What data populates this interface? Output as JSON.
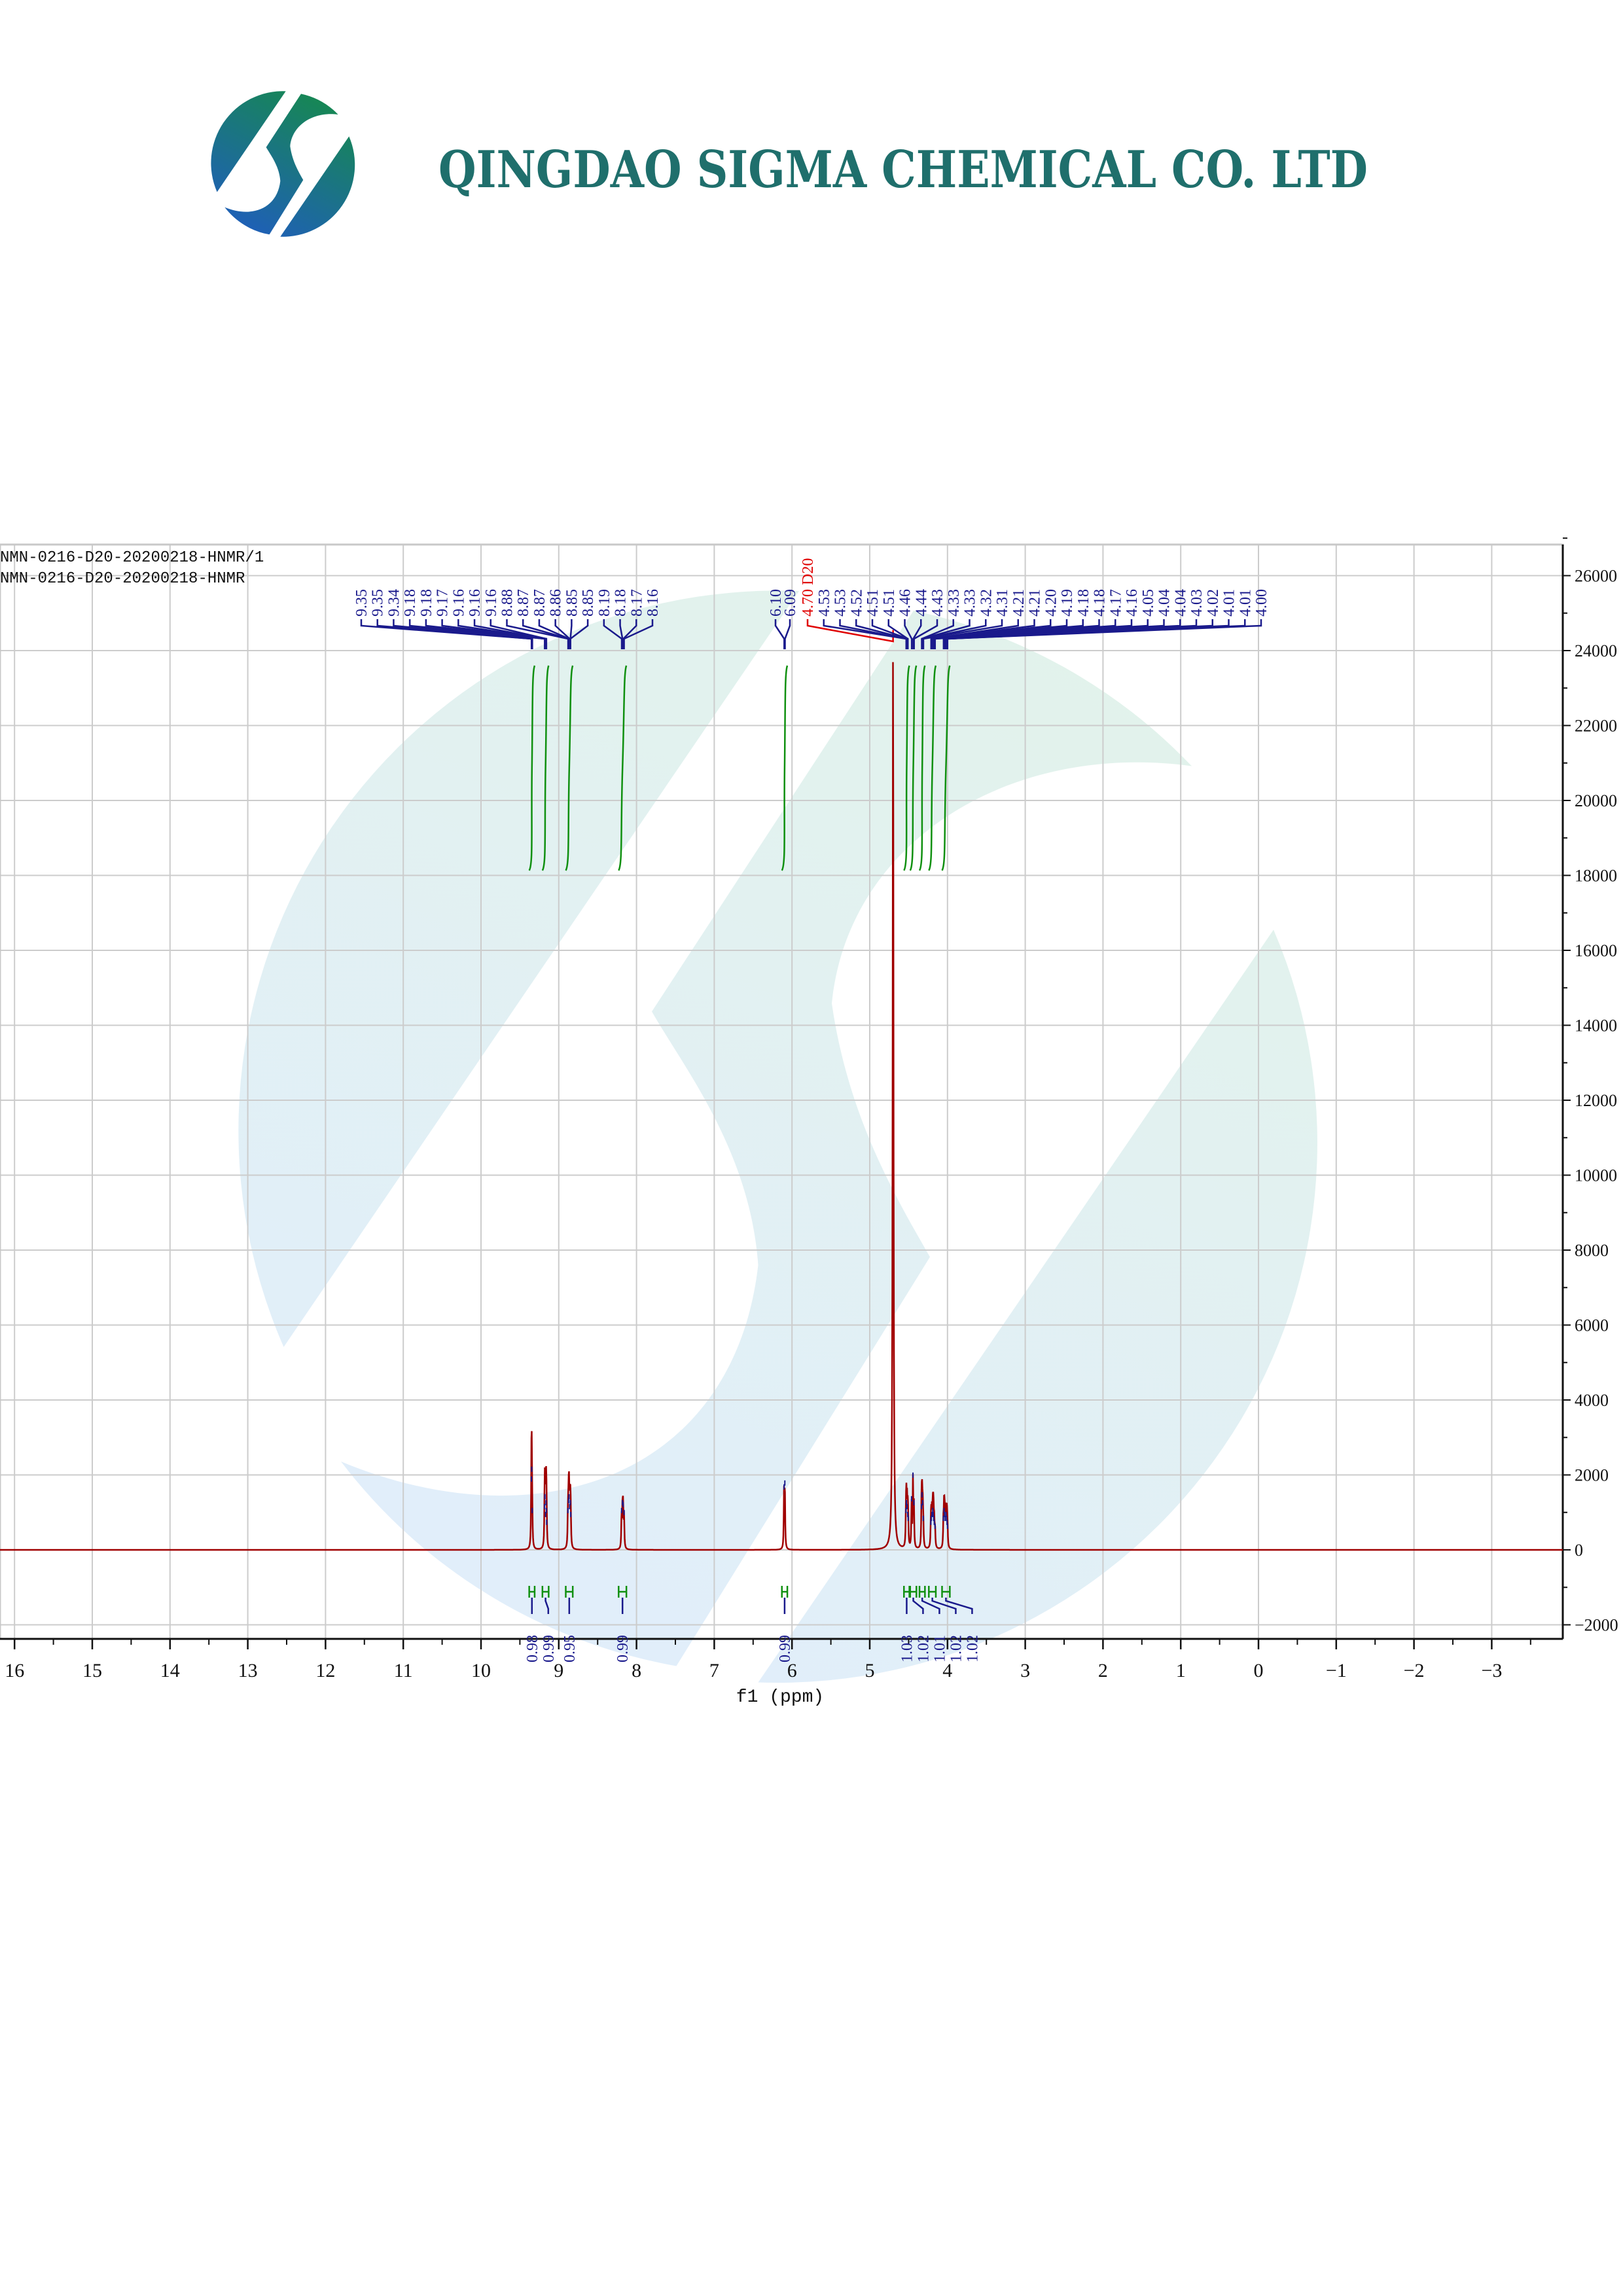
{
  "header": {
    "company_name": "QINGDAO SIGMA CHEMICAL CO. LTD",
    "logo_text": "QINGDAO SIGMA CHEMICAL CO. LTD",
    "colors": {
      "title": "#1f6f6c",
      "logo_green": "#168a4c",
      "logo_blue": "#1f5fb8"
    }
  },
  "chart_data": {
    "type": "line",
    "title": "",
    "legend": [
      "NMN-0216-D20-20200218-HNMR/1",
      "NMN-0216-D20-20200218-HNMR"
    ],
    "legend_placement": "top-left",
    "xlabel": "f1 (ppm)",
    "ylabel": "",
    "x_reversed": true,
    "xlim": [
      16.2,
      -3.9
    ],
    "ylim": [
      -2300,
      26800
    ],
    "x_ticks": [
      16,
      15,
      14,
      13,
      12,
      11,
      10,
      9,
      8,
      7,
      6,
      5,
      4,
      3,
      2,
      1,
      0,
      -1,
      -2,
      -3
    ],
    "x_tick_labels": [
      "16",
      "15",
      "14",
      "13",
      "12",
      "11",
      "10",
      "9",
      "8",
      "7",
      "6",
      "5",
      "4",
      "3",
      "2",
      "1",
      "0",
      "−1",
      "−2",
      "−3"
    ],
    "y_ticks": [
      -2000,
      0,
      2000,
      4000,
      6000,
      8000,
      10000,
      12000,
      14000,
      16000,
      18000,
      20000,
      22000,
      24000,
      26000
    ],
    "y_tick_labels": [
      "−2000",
      "0",
      "2000",
      "4000",
      "6000",
      "8000",
      "10000",
      "12000",
      "14000",
      "16000",
      "18000",
      "20000",
      "22000",
      "24000",
      "26000"
    ],
    "y_axis_side": "right",
    "grid": true,
    "colors": {
      "spectrum": "#a00000",
      "peak_label": "#1a1a8c",
      "solvent_label": "#e00000",
      "integral": "#109010",
      "grid": "#cccccc"
    },
    "peak_groups": [
      {
        "labels": [
          "9.35",
          "9.35",
          "9.34",
          "9.18",
          "9.18",
          "9.17",
          "9.16",
          "9.16",
          "9.16",
          "8.88",
          "8.87",
          "8.87",
          "8.86",
          "8.85",
          "8.85",
          "8.19",
          "8.18",
          "8.17",
          "8.16"
        ]
      },
      {
        "labels": [
          "6.10",
          "6.09"
        ]
      },
      {
        "labels": [
          "4.70 D20",
          "4.53",
          "4.53",
          "4.52",
          "4.51",
          "4.51",
          "4.46",
          "4.44",
          "4.43",
          "4.33",
          "4.33",
          "4.32",
          "4.31",
          "4.21",
          "4.21",
          "4.20",
          "4.19",
          "4.18",
          "4.18",
          "4.17",
          "4.16",
          "4.05",
          "4.04",
          "4.04",
          "4.03",
          "4.02",
          "4.01",
          "4.01",
          "4.00"
        ]
      }
    ],
    "peaks": [
      {
        "ppm": 9.352,
        "intensity": 1700
      },
      {
        "ppm": 9.348,
        "intensity": 1950
      },
      {
        "ppm": 9.342,
        "intensity": 900
      },
      {
        "ppm": 9.182,
        "intensity": 1000
      },
      {
        "ppm": 9.178,
        "intensity": 1250
      },
      {
        "ppm": 9.17,
        "intensity": 800
      },
      {
        "ppm": 9.164,
        "intensity": 1100
      },
      {
        "ppm": 9.16,
        "intensity": 900
      },
      {
        "ppm": 9.156,
        "intensity": 600
      },
      {
        "ppm": 8.882,
        "intensity": 900
      },
      {
        "ppm": 8.874,
        "intensity": 1150
      },
      {
        "ppm": 8.868,
        "intensity": 1250
      },
      {
        "ppm": 8.86,
        "intensity": 1000
      },
      {
        "ppm": 8.852,
        "intensity": 1100
      },
      {
        "ppm": 8.846,
        "intensity": 800
      },
      {
        "ppm": 8.192,
        "intensity": 900
      },
      {
        "ppm": 8.18,
        "intensity": 1100
      },
      {
        "ppm": 8.172,
        "intensity": 1050
      },
      {
        "ppm": 8.16,
        "intensity": 850
      },
      {
        "ppm": 6.102,
        "intensity": 1500
      },
      {
        "ppm": 6.092,
        "intensity": 1600
      },
      {
        "ppm": 4.7,
        "intensity": 24600,
        "solvent": true
      },
      {
        "ppm": 4.534,
        "intensity": 900
      },
      {
        "ppm": 4.528,
        "intensity": 1100
      },
      {
        "ppm": 4.52,
        "intensity": 1000
      },
      {
        "ppm": 4.512,
        "intensity": 800
      },
      {
        "ppm": 4.506,
        "intensity": 700
      },
      {
        "ppm": 4.462,
        "intensity": 1200
      },
      {
        "ppm": 4.444,
        "intensity": 1800
      },
      {
        "ppm": 4.432,
        "intensity": 1100
      },
      {
        "ppm": 4.334,
        "intensity": 1000
      },
      {
        "ppm": 4.328,
        "intensity": 1300
      },
      {
        "ppm": 4.32,
        "intensity": 1100
      },
      {
        "ppm": 4.312,
        "intensity": 700
      },
      {
        "ppm": 4.214,
        "intensity": 600
      },
      {
        "ppm": 4.208,
        "intensity": 700
      },
      {
        "ppm": 4.2,
        "intensity": 800
      },
      {
        "ppm": 4.19,
        "intensity": 900
      },
      {
        "ppm": 4.184,
        "intensity": 800
      },
      {
        "ppm": 4.178,
        "intensity": 700
      },
      {
        "ppm": 4.17,
        "intensity": 600
      },
      {
        "ppm": 4.16,
        "intensity": 500
      },
      {
        "ppm": 4.052,
        "intensity": 700
      },
      {
        "ppm": 4.044,
        "intensity": 900
      },
      {
        "ppm": 4.038,
        "intensity": 800
      },
      {
        "ppm": 4.03,
        "intensity": 700
      },
      {
        "ppm": 4.02,
        "intensity": 800
      },
      {
        "ppm": 4.012,
        "intensity": 700
      },
      {
        "ppm": 4.006,
        "intensity": 600
      },
      {
        "ppm": 4.0,
        "intensity": 500
      }
    ],
    "integrals": [
      {
        "from": 9.38,
        "to": 9.31,
        "value": "0.98"
      },
      {
        "from": 9.21,
        "to": 9.13,
        "value": "0.99"
      },
      {
        "from": 8.91,
        "to": 8.82,
        "value": "0.95"
      },
      {
        "from": 8.23,
        "to": 8.13,
        "value": "0.99"
      },
      {
        "from": 6.13,
        "to": 6.06,
        "value": "0.99"
      },
      {
        "from": 4.56,
        "to": 4.49,
        "value": "1.03"
      },
      {
        "from": 4.48,
        "to": 4.4,
        "value": "1.02"
      },
      {
        "from": 4.36,
        "to": 4.29,
        "value": "1.01"
      },
      {
        "from": 4.24,
        "to": 4.15,
        "value": "1.02"
      },
      {
        "from": 4.07,
        "to": 3.97,
        "value": "1.02"
      }
    ]
  }
}
